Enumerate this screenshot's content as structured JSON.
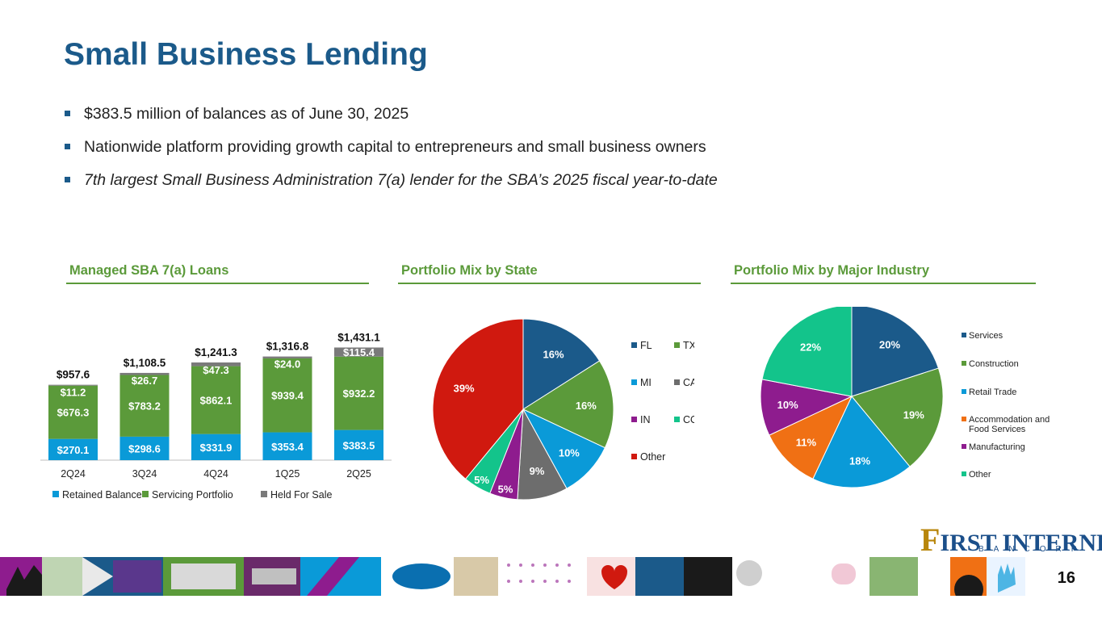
{
  "title": "Small Business Lending",
  "bullets": [
    "$383.5 million of balances as of June 30, 2025",
    "Nationwide platform providing growth capital to entrepreneurs and small business owners",
    "7th largest Small Business Administration 7(a) lender for the SBA’s 2025 fiscal year-to-date"
  ],
  "panels": {
    "loans_title": "Managed SBA 7(a) Loans",
    "state_title": "Portfolio Mix by State",
    "industry_title": "Portfolio Mix by Major Industry"
  },
  "colors": {
    "title": "#1b5a8a",
    "accent_green": "#5b9a3a",
    "retained": "#0a9ad8",
    "servicing": "#5b9a3a",
    "held": "#7a7a7a"
  },
  "chart_data": [
    {
      "type": "bar",
      "stacked": true,
      "categories": [
        "2Q24",
        "3Q24",
        "4Q24",
        "1Q25",
        "2Q25"
      ],
      "series": [
        {
          "name": "Retained Balance",
          "values": [
            270.1,
            298.6,
            331.9,
            353.4,
            383.5
          ],
          "labels": [
            "$270.1",
            "$298.6",
            "$331.9",
            "$353.4",
            "$383.5"
          ],
          "color": "#0a9ad8"
        },
        {
          "name": "Servicing Portfolio",
          "values": [
            676.3,
            783.2,
            862.1,
            939.4,
            932.2
          ],
          "labels": [
            "$676.3",
            "$783.2",
            "$862.1",
            "$939.4",
            "$932.2"
          ],
          "color": "#5b9a3a"
        },
        {
          "name": "Held For Sale",
          "values": [
            11.2,
            26.7,
            47.3,
            24.0,
            115.4
          ],
          "labels": [
            "$11.2",
            "$26.7",
            "$47.3",
            "$24.0",
            "$115.4"
          ],
          "color": "#7a7a7a"
        }
      ],
      "totals": [
        957.6,
        1108.5,
        1241.3,
        1316.8,
        1431.1
      ],
      "total_labels": [
        "$957.6",
        "$1,108.5",
        "$1,241.3",
        "$1,316.8",
        "$1,431.1"
      ],
      "legend_position": "bottom"
    },
    {
      "type": "pie",
      "slices": [
        {
          "label": "FL",
          "value": 16,
          "display": "16%",
          "color": "#1b5a8a"
        },
        {
          "label": "TX",
          "value": 16,
          "display": "16%",
          "color": "#5b9a3a"
        },
        {
          "label": "MI",
          "value": 10,
          "display": "10%",
          "color": "#0a9ad8"
        },
        {
          "label": "CA",
          "value": 9,
          "display": "9%",
          "color": "#6d6d6d"
        },
        {
          "label": "IN",
          "value": 5,
          "display": "5%",
          "color": "#8e1c8e"
        },
        {
          "label": "CO",
          "value": 5,
          "display": "5%",
          "color": "#13c48b"
        },
        {
          "label": "Other",
          "value": 39,
          "display": "39%",
          "color": "#d0190f"
        }
      ],
      "legend_position": "right"
    },
    {
      "type": "pie",
      "slices": [
        {
          "label": "Services",
          "value": 20,
          "display": "20%",
          "color": "#1b5a8a"
        },
        {
          "label": "Construction",
          "value": 19,
          "display": "19%",
          "color": "#5b9a3a"
        },
        {
          "label": "Retail Trade",
          "value": 18,
          "display": "18%",
          "color": "#0a9ad8"
        },
        {
          "label": "Accommodation and Food Services",
          "lines": [
            "Accommodation and",
            "Food Services"
          ],
          "value": 11,
          "display": "11%",
          "color": "#f07014"
        },
        {
          "label": "Manufacturing",
          "value": 10,
          "display": "10%",
          "color": "#8e1c8e"
        },
        {
          "label": "Other",
          "value": 22,
          "display": "22%",
          "color": "#13c48b"
        }
      ],
      "legend_position": "right"
    }
  ],
  "logo": {
    "main": "FIRST INTERNET",
    "first_letter": "F",
    "rest": "IRST INTERNET",
    "sub": "BANCORP"
  },
  "page_number": "16"
}
